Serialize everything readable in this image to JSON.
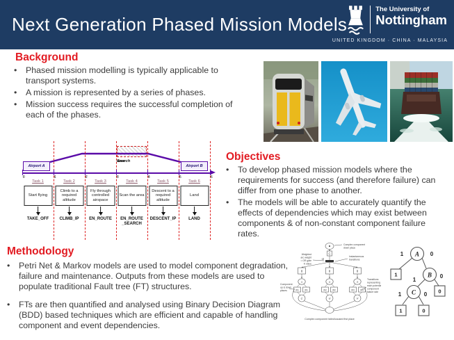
{
  "colors": {
    "header_navy": "#1e3c63",
    "heading_red": "#e21b22",
    "diagram_purple": "#5a0aa8",
    "dash_red": "#dd2222"
  },
  "header": {
    "title": "Next Generation Phased Mission Models",
    "logo": {
      "line1": "The University of",
      "line2": "Nottingham",
      "tagline": "UNITED KINGDOM · CHINA · MALAYSIA"
    }
  },
  "photos": [
    "train",
    "airplane",
    "container-ship"
  ],
  "background": {
    "heading": "Background",
    "bullets": [
      "Phased mission modelling is typically applicable to transport systems.",
      "A mission is represented by a series of phases.",
      "Mission success requires the successful completion of each of the phases."
    ]
  },
  "objectives": {
    "heading": "Objectives",
    "bullets": [
      "To develop phased mission models where the requirements for success (and therefore failure) can differ from one phase to another.",
      "The models will be able to accurately quantify the effects of dependencies which may exist between components & of non-constant component failure rates."
    ]
  },
  "methodology": {
    "heading": "Methodology",
    "bullets": [
      "Petri Net & Markov models are used to model component degradation, failure and maintenance. Outputs from these models are used to populate traditional Fault tree (FT) structures.",
      "FTs are then quantified and analysed using Binary Decision Diagram (BDD) based techniques which are efficient and capable of handling component and event dependencies."
    ]
  },
  "phase_diagram": {
    "airport_a": "Airport A",
    "airport_b": "Airport B",
    "search_area_lines": [
      "Search",
      "area"
    ],
    "tick_prefix": "t",
    "ticks": [
      "0",
      "1",
      "2",
      "3",
      "4",
      "5",
      "6"
    ],
    "tasks": [
      {
        "label": "Task 1",
        "desc": "Start flying",
        "phase": "TAKE_OFF"
      },
      {
        "label": "Task 2",
        "desc": "Climb to a required altitude",
        "phase": "CLIMB_IP"
      },
      {
        "label": "Task 3",
        "desc": "Fly through controlled airspace",
        "phase": "EN_ROUTE"
      },
      {
        "label": "Task 4",
        "desc": "Scan the area",
        "phase": "EN_ROUTE\n_SEARCH"
      },
      {
        "label": "Task 5",
        "desc": "Descent to a required altitude",
        "phase": "DESCENT_IP"
      },
      {
        "label": "Task 6",
        "desc": "Land",
        "phase": "LAND"
      }
    ]
  },
  "petri": {
    "ann_down_place": [
      "Complex component",
      "down place"
    ],
    "ann_weight": [
      "Weighted",
      "arc weight",
      "= OR gate",
      "K value"
    ],
    "ann_instant": [
      "Instantaneous",
      "transitions"
    ],
    "ann_updown": [
      "Component",
      "up & down",
      "places"
    ],
    "ann_transitions": [
      "Transitions",
      "representing",
      "each potential",
      "component",
      "failure rate"
    ],
    "caption": "Complex component failed/caused first place",
    "gate_letter": "C",
    "gate_weight": "-2",
    "branch_zero": "0",
    "branch_t": [
      "t1",
      "t2",
      "t3"
    ],
    "branch_pairs": [
      [
        "tD1",
        "tR1"
      ],
      [
        "tD2",
        "tR2"
      ],
      [
        "tD3",
        "tR3"
      ]
    ],
    "branch_letters": [
      "C",
      "U",
      "V"
    ]
  },
  "bdd": {
    "node_a": "A",
    "node_b": "B",
    "node_c": "C",
    "one": "1",
    "zero": "0"
  }
}
